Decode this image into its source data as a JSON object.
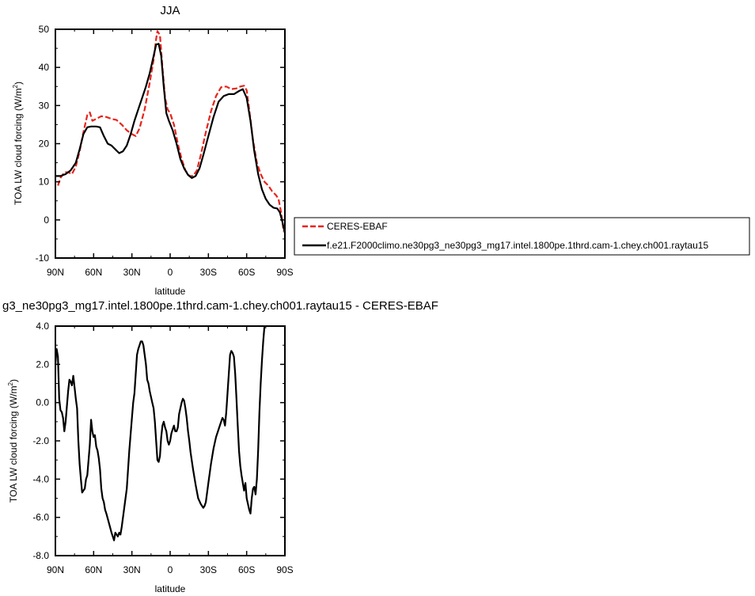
{
  "chart_data": [
    {
      "type": "line",
      "title": "JJA",
      "ylabel": "TOA LW cloud forcing (W/m",
      "ylabel_sup": "2",
      "ylabel_end": ")",
      "xlabel": "latitude",
      "xlim": [
        90,
        -90
      ],
      "ylim": [
        -10,
        50
      ],
      "x_ticks": [
        90,
        60,
        30,
        0,
        -30,
        -60,
        -90
      ],
      "x_tick_labels": [
        "90N",
        "60N",
        "30N",
        "0",
        "30S",
        "60S",
        "90S"
      ],
      "y_ticks": [
        -10,
        0,
        10,
        20,
        30,
        40,
        50
      ],
      "y_tick_labels": [
        "-10",
        "0",
        "10",
        "20",
        "30",
        "40",
        "50"
      ],
      "legend": {
        "placement": "right"
      },
      "series": [
        {
          "name": "CERES-EBAF",
          "color": "#e8241c",
          "dash": "dashed",
          "points": [
            [
              88,
              9
            ],
            [
              86,
              11
            ],
            [
              83,
              12.5
            ],
            [
              80,
              12.5
            ],
            [
              77,
              12
            ],
            [
              74,
              14
            ],
            [
              71,
              18
            ],
            [
              68,
              23
            ],
            [
              65,
              27.5
            ],
            [
              63,
              28.2
            ],
            [
              61,
              26
            ],
            [
              58,
              26.5
            ],
            [
              54,
              27.2
            ],
            [
              50,
              27
            ],
            [
              46,
              26.5
            ],
            [
              42,
              26.2
            ],
            [
              38,
              25
            ],
            [
              34,
              23.5
            ],
            [
              30,
              22.5
            ],
            [
              27,
              22
            ],
            [
              24,
              24
            ],
            [
              20,
              29
            ],
            [
              16,
              36
            ],
            [
              13,
              42
            ],
            [
              11,
              47.5
            ],
            [
              10,
              49.5
            ],
            [
              8,
              48.5
            ],
            [
              6,
              40
            ],
            [
              4,
              32
            ],
            [
              2,
              29
            ],
            [
              0,
              28
            ],
            [
              -3,
              25
            ],
            [
              -6,
              20
            ],
            [
              -9,
              16
            ],
            [
              -12,
              13
            ],
            [
              -15,
              11.5
            ],
            [
              -18,
              11.5
            ],
            [
              -21,
              13
            ],
            [
              -24,
              17
            ],
            [
              -28,
              23
            ],
            [
              -32,
              28.5
            ],
            [
              -36,
              32.5
            ],
            [
              -40,
              34.8
            ],
            [
              -44,
              35
            ],
            [
              -48,
              34.3
            ],
            [
              -52,
              34.5
            ],
            [
              -55,
              35
            ],
            [
              -58,
              35.2
            ],
            [
              -60,
              34
            ],
            [
              -62,
              29
            ],
            [
              -65,
              21
            ],
            [
              -68,
              15
            ],
            [
              -71,
              12
            ],
            [
              -74,
              10
            ],
            [
              -77,
              9
            ],
            [
              -80,
              7.5
            ],
            [
              -83,
              6.5
            ],
            [
              -85,
              5.5
            ],
            [
              -87,
              2
            ],
            [
              -89,
              -3
            ]
          ]
        },
        {
          "name": "f.e21.F2000climo.ne30pg3_ne30pg3_mg17.intel.1800pe.1thrd.cam-1.chey.ch001.raytau15",
          "color": "#000000",
          "dash": "solid",
          "points": [
            [
              90,
              11.5
            ],
            [
              86,
              11.5
            ],
            [
              82,
              12
            ],
            [
              78,
              13
            ],
            [
              74,
              15
            ],
            [
              71,
              18.5
            ],
            [
              68,
              22.5
            ],
            [
              65,
              24.3
            ],
            [
              62,
              24.5
            ],
            [
              58,
              24.5
            ],
            [
              55,
              24.3
            ],
            [
              52,
              22
            ],
            [
              49,
              20
            ],
            [
              46,
              19.5
            ],
            [
              43,
              18.5
            ],
            [
              40,
              17.5
            ],
            [
              37,
              18
            ],
            [
              34,
              19.5
            ],
            [
              31,
              22.5
            ],
            [
              28,
              26
            ],
            [
              25,
              29
            ],
            [
              22,
              32
            ],
            [
              19,
              35
            ],
            [
              16,
              38.5
            ],
            [
              13,
              43
            ],
            [
              11,
              46
            ],
            [
              9,
              46.2
            ],
            [
              7,
              43
            ],
            [
              5,
              35
            ],
            [
              3,
              28
            ],
            [
              1,
              26
            ],
            [
              -2,
              23.5
            ],
            [
              -5,
              20
            ],
            [
              -8,
              16
            ],
            [
              -11,
              13.5
            ],
            [
              -14,
              11.8
            ],
            [
              -17,
              11
            ],
            [
              -20,
              11.5
            ],
            [
              -23,
              13.5
            ],
            [
              -26,
              17
            ],
            [
              -30,
              22
            ],
            [
              -34,
              27
            ],
            [
              -38,
              31
            ],
            [
              -42,
              32.5
            ],
            [
              -46,
              33
            ],
            [
              -50,
              33
            ],
            [
              -54,
              33.8
            ],
            [
              -57,
              34.3
            ],
            [
              -60,
              32
            ],
            [
              -63,
              26
            ],
            [
              -66,
              18
            ],
            [
              -69,
              12
            ],
            [
              -72,
              8
            ],
            [
              -75,
              5.5
            ],
            [
              -78,
              4
            ],
            [
              -81,
              3.2
            ],
            [
              -84,
              3
            ],
            [
              -86,
              2
            ],
            [
              -88,
              -0.5
            ],
            [
              -90,
              -3.5
            ]
          ]
        }
      ]
    },
    {
      "type": "line",
      "title": "ɡ3_ne30pg3_mg17.intel.1800pe.1thrd.cam-1.chey.ch001.raytau15 - CERES-EBAF",
      "ylabel": "TOA LW cloud forcing (W/m",
      "ylabel_sup": "2",
      "ylabel_end": ")",
      "xlabel": "latitude",
      "xlim": [
        90,
        -90
      ],
      "ylim": [
        -8,
        4
      ],
      "x_ticks": [
        90,
        60,
        30,
        0,
        -30,
        -60,
        -90
      ],
      "x_tick_labels": [
        "90N",
        "60N",
        "30N",
        "0",
        "30S",
        "60S",
        "90S"
      ],
      "y_ticks": [
        -8,
        -6,
        -4,
        -2,
        0,
        2,
        4
      ],
      "y_tick_labels": [
        "-8.0",
        "-6.0",
        "-4.0",
        "-2.0",
        "0.0",
        "2.0",
        "4.0"
      ],
      "series": [
        {
          "color": "#000000",
          "dash": "solid",
          "points": [
            [
              90,
              2
            ],
            [
              89,
              2.8
            ],
            [
              88,
              2.4
            ],
            [
              87,
              0.2
            ],
            [
              86,
              -0.4
            ],
            [
              85,
              -0.5
            ],
            [
              84,
              -0.8
            ],
            [
              83,
              -1.5
            ],
            [
              82,
              -1.0
            ],
            [
              81,
              -0.2
            ],
            [
              80,
              0.6
            ],
            [
              79,
              1.2
            ],
            [
              78,
              1.1
            ],
            [
              77,
              0.9
            ],
            [
              76,
              1.4
            ],
            [
              75,
              0.8
            ],
            [
              74,
              0.2
            ],
            [
              73,
              -0.3
            ],
            [
              72,
              -2.0
            ],
            [
              71,
              -3.2
            ],
            [
              70,
              -4.0
            ],
            [
              69,
              -4.7
            ],
            [
              68,
              -4.6
            ],
            [
              67,
              -4.5
            ],
            [
              66,
              -4.0
            ],
            [
              65,
              -3.8
            ],
            [
              64,
              -3.0
            ],
            [
              63,
              -2.2
            ],
            [
              62,
              -0.9
            ],
            [
              61,
              -1.5
            ],
            [
              60,
              -1.8
            ],
            [
              59,
              -1.7
            ],
            [
              58,
              -2.3
            ],
            [
              57,
              -2.5
            ],
            [
              56,
              -2.9
            ],
            [
              55,
              -3.5
            ],
            [
              54,
              -4.5
            ],
            [
              53,
              -5.0
            ],
            [
              52,
              -5.2
            ],
            [
              51,
              -5.6
            ],
            [
              50,
              -5.8
            ],
            [
              48,
              -6.3
            ],
            [
              46,
              -6.8
            ],
            [
              45,
              -7.0
            ],
            [
              44,
              -7.2
            ],
            [
              43,
              -6.8
            ],
            [
              42,
              -6.9
            ],
            [
              41,
              -7.0
            ],
            [
              40,
              -6.8
            ],
            [
              39,
              -6.9
            ],
            [
              38,
              -6.5
            ],
            [
              36,
              -5.5
            ],
            [
              34,
              -4.5
            ],
            [
              32,
              -2.5
            ],
            [
              30,
              -0.8
            ],
            [
              29,
              0
            ],
            [
              28,
              0.5
            ],
            [
              27,
              1.5
            ],
            [
              26,
              2.5
            ],
            [
              25,
              2.8
            ],
            [
              24,
              3.0
            ],
            [
              23,
              3.2
            ],
            [
              22,
              3.2
            ],
            [
              21,
              3.0
            ],
            [
              20,
              2.5
            ],
            [
              19,
              2.0
            ],
            [
              18,
              1.2
            ],
            [
              17,
              1.0
            ],
            [
              16,
              0.6
            ],
            [
              14,
              0
            ],
            [
              13,
              -0.3
            ],
            [
              12,
              -1.0
            ],
            [
              11,
              -2.0
            ],
            [
              10,
              -3.0
            ],
            [
              9,
              -3.1
            ],
            [
              8,
              -2.8
            ],
            [
              7,
              -1.8
            ],
            [
              6,
              -1.2
            ],
            [
              5,
              -1.0
            ],
            [
              4,
              -1.3
            ],
            [
              3,
              -1.5
            ],
            [
              2,
              -2.0
            ],
            [
              1,
              -2.2
            ],
            [
              0,
              -2.0
            ],
            [
              -1,
              -1.6
            ],
            [
              -2,
              -1.4
            ],
            [
              -3,
              -1.2
            ],
            [
              -4,
              -1.5
            ],
            [
              -5,
              -1.5
            ],
            [
              -6,
              -1.3
            ],
            [
              -7,
              -0.6
            ],
            [
              -8,
              -0.3
            ],
            [
              -9,
              0
            ],
            [
              -10,
              0.2
            ],
            [
              -11,
              0.1
            ],
            [
              -12,
              -0.3
            ],
            [
              -13,
              -0.8
            ],
            [
              -14,
              -1.5
            ],
            [
              -15,
              -2.0
            ],
            [
              -16,
              -2.6
            ],
            [
              -18,
              -3.5
            ],
            [
              -20,
              -4.3
            ],
            [
              -22,
              -5.0
            ],
            [
              -24,
              -5.3
            ],
            [
              -26,
              -5.5
            ],
            [
              -27,
              -5.4
            ],
            [
              -28,
              -5.2
            ],
            [
              -30,
              -4.2
            ],
            [
              -32,
              -3.2
            ],
            [
              -34,
              -2.4
            ],
            [
              -36,
              -1.8
            ],
            [
              -38,
              -1.4
            ],
            [
              -40,
              -1.0
            ],
            [
              -41,
              -0.8
            ],
            [
              -42,
              -0.9
            ],
            [
              -43,
              -1.2
            ],
            [
              -44,
              -0.5
            ],
            [
              -45,
              0.5
            ],
            [
              -46,
              1.5
            ],
            [
              -47,
              2.5
            ],
            [
              -48,
              2.7
            ],
            [
              -49,
              2.6
            ],
            [
              -50,
              2.4
            ],
            [
              -51,
              1.5
            ],
            [
              -52,
              0.2
            ],
            [
              -53,
              -1.2
            ],
            [
              -54,
              -2.5
            ],
            [
              -55,
              -3.3
            ],
            [
              -56,
              -3.8
            ],
            [
              -57,
              -4.2
            ],
            [
              -58,
              -4.6
            ],
            [
              -59,
              -4.2
            ],
            [
              -60,
              -5.0
            ],
            [
              -61,
              -5.3
            ],
            [
              -62,
              -5.6
            ],
            [
              -63,
              -5.8
            ],
            [
              -64,
              -5.0
            ],
            [
              -65,
              -4.5
            ],
            [
              -66,
              -4.4
            ],
            [
              -67,
              -4.8
            ],
            [
              -68,
              -4.0
            ],
            [
              -69,
              -2.5
            ],
            [
              -70,
              -0.5
            ],
            [
              -71,
              1.0
            ],
            [
              -72,
              2.2
            ],
            [
              -73,
              3.2
            ],
            [
              -74,
              4.0
            ]
          ]
        }
      ]
    }
  ]
}
